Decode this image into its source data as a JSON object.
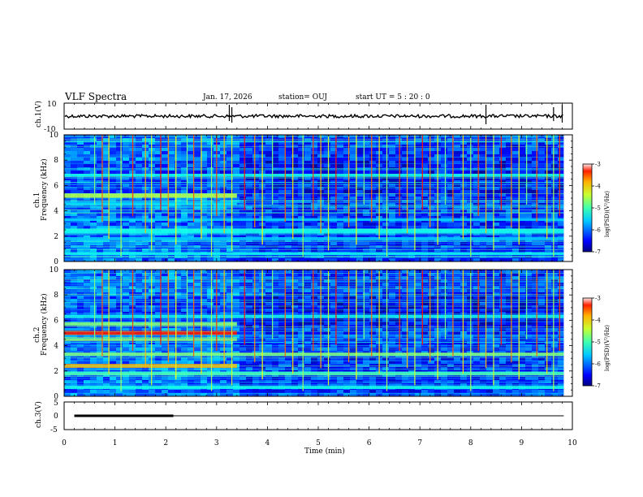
{
  "chart_data": {
    "type": "heatmap",
    "title": "VLF Spectra",
    "date": "Jan. 17, 2026",
    "station": "station= OUJ",
    "start_ut": "start  UT =  5 : 20 : 0",
    "x": {
      "label": "Time  (min)",
      "range": [
        0,
        10
      ],
      "ticks": [
        "0",
        "1",
        "2",
        "3",
        "4",
        "5",
        "6",
        "7",
        "8",
        "9",
        "10"
      ]
    },
    "panels": [
      {
        "kind": "waveform",
        "ylabel": "ch.1(V)",
        "yrange": [
          -10,
          10
        ],
        "yticks": [
          "10",
          "-10"
        ],
        "baseline_value": 0,
        "spikes_min": [
          3.25,
          3.3,
          8.3,
          9.63,
          9.8
        ]
      },
      {
        "kind": "spectrogram",
        "ylabel1": "ch.1",
        "ylabel2": "Frequency  (kHz)",
        "yrange": [
          0,
          10
        ],
        "yticks": [
          "0",
          "2",
          "4",
          "6",
          "8",
          "10"
        ],
        "regime_change_min": 3.4,
        "bands_khz": [
          {
            "f": 5.2,
            "w": 0.35,
            "v": 0.55,
            "until": 3.4
          },
          {
            "f": 4.6,
            "w": 0.25,
            "v": 0.35,
            "until": 3.4
          },
          {
            "f": 6.8,
            "w": 0.2,
            "v": 0.38,
            "until": 10
          },
          {
            "f": 3.3,
            "w": 0.18,
            "v": 0.34,
            "until": 10
          },
          {
            "f": 2.4,
            "w": 0.4,
            "v": 0.4,
            "until": 10
          },
          {
            "f": 1.8,
            "w": 0.25,
            "v": 0.32,
            "until": 10
          },
          {
            "f": 0.6,
            "w": 0.2,
            "v": 0.35,
            "until": 10
          }
        ]
      },
      {
        "kind": "spectrogram",
        "ylabel1": "ch.2",
        "ylabel2": "Frequency  (kHz)",
        "yrange": [
          0,
          10
        ],
        "yticks": [
          "0",
          "2",
          "4",
          "6",
          "8",
          "10"
        ],
        "regime_change_min": 3.4,
        "bands_khz": [
          {
            "f": 5.0,
            "w": 0.35,
            "v": 0.85,
            "until": 3.4
          },
          {
            "f": 4.5,
            "w": 0.3,
            "v": 0.55,
            "until": 3.4
          },
          {
            "f": 5.7,
            "w": 0.3,
            "v": 0.5,
            "until": 3.4
          },
          {
            "f": 2.4,
            "w": 0.3,
            "v": 0.7,
            "until": 3.4
          },
          {
            "f": 3.3,
            "w": 0.3,
            "v": 0.5,
            "until": 10
          },
          {
            "f": 1.8,
            "w": 0.3,
            "v": 0.45,
            "until": 10
          },
          {
            "f": 6.3,
            "w": 0.25,
            "v": 0.4,
            "until": 10
          },
          {
            "f": 0.7,
            "w": 0.25,
            "v": 0.4,
            "until": 10
          }
        ]
      },
      {
        "kind": "channel3",
        "ylabel": "ch.3(V)",
        "yrange": [
          -5,
          5
        ],
        "yticks": [
          "5",
          "0",
          "-5"
        ],
        "line_value": 0,
        "thick_segment_min": [
          0.2,
          2.15
        ]
      }
    ],
    "colorbar": {
      "label": "log(PSD)(V²/Hz)",
      "range": [
        -7,
        -3
      ],
      "ticks": [
        "-3",
        "-4",
        "-5",
        "-6",
        "-7"
      ]
    },
    "sferic_times_min": [
      0.6,
      0.75,
      0.88,
      1.12,
      1.35,
      1.6,
      1.72,
      1.9,
      2.05,
      2.2,
      2.42,
      2.55,
      2.7,
      2.9,
      3.0,
      3.15,
      3.3,
      3.55,
      3.75,
      3.9,
      4.1,
      4.35,
      4.5,
      4.7,
      4.9,
      5.05,
      5.2,
      5.35,
      5.6,
      5.75,
      5.9,
      6.05,
      6.2,
      6.35,
      6.6,
      6.75,
      6.9,
      7.05,
      7.2,
      7.35,
      7.5,
      7.65,
      7.85,
      8.0,
      8.15,
      8.3,
      8.45,
      8.6,
      8.8,
      8.95,
      9.1,
      9.3,
      9.5,
      9.63,
      9.75
    ]
  }
}
